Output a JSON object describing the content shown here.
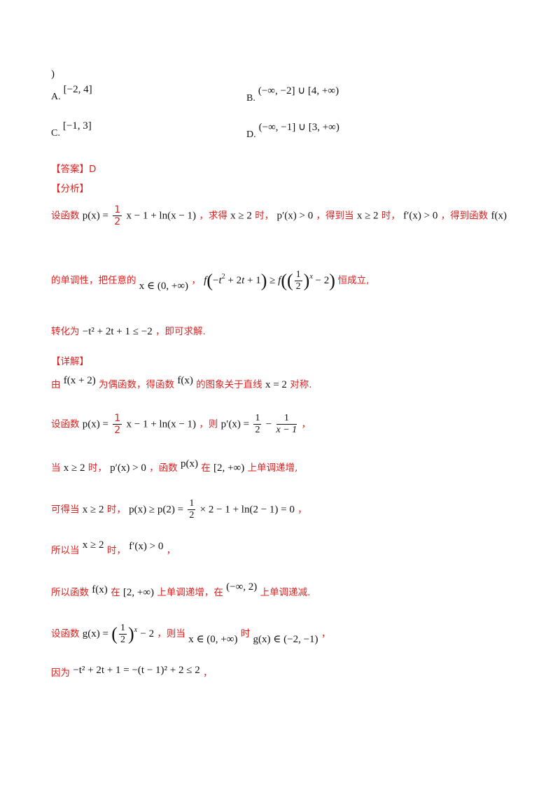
{
  "top_paren": ")",
  "options": {
    "A": {
      "label": "A.",
      "value": "[−2, 4]"
    },
    "B": {
      "label": "B.",
      "value": "(−∞, −2] ∪ [4, +∞)"
    },
    "C": {
      "label": "C.",
      "value": "[−1, 3]"
    },
    "D": {
      "label": "D.",
      "value": "(−∞, −1] ∪ [3, +∞)"
    }
  },
  "answer": {
    "tag": "【答案】",
    "value": "D"
  },
  "analysis": {
    "tag": "【分析】",
    "l1_a": "设函数",
    "l1_m1": "p(x) =",
    "l1_m2": "x − 1 + ln(x − 1)",
    "l1_b": "，求得",
    "l1_m3": "x ≥ 2",
    "l1_c": "时，",
    "l1_m4": "p′(x) > 0",
    "l1_d": "，得到当",
    "l1_m5": "x ≥ 2",
    "l1_e": "时，",
    "l1_m6": "f′(x) > 0",
    "l1_f": "，得到函数",
    "l1_m7": "f(x)",
    "l2_a": "的单调性，把任意的",
    "l2_m1": "x ∈ (0, +∞)",
    "l2_b": "，",
    "l2_c": "恒成立,",
    "l3_a": "转化为",
    "l3_m": "−t² + 2t + 1 ≤ −2",
    "l3_b": "，即可求解."
  },
  "detail": {
    "tag": "【详解】",
    "l1_a": "由",
    "l1_m1": "f(x + 2)",
    "l1_b": "为偶函数，得函数",
    "l1_m2": "f(x)",
    "l1_c": "的图象关于直线",
    "l1_m3": "x = 2",
    "l1_d": "对称.",
    "l2_a": "设函数",
    "l2_m1": "p(x) =",
    "l2_m2": "x − 1 + ln(x − 1)",
    "l2_b": "，则",
    "l2_m3": "p′(x) =",
    "l2_c": "，",
    "l3_a": "当",
    "l3_m1": "x ≥ 2",
    "l3_b": "时，",
    "l3_m2": "p′(x) > 0",
    "l3_c": "，函数",
    "l3_m3": "p(x)",
    "l3_d": "在",
    "l3_m4": "[2, +∞)",
    "l3_e": "上单调递增,",
    "l4_a": "可得当",
    "l4_m1": "x ≥ 2",
    "l4_b": "时，",
    "l4_m2": "p(x) ≥ p(2) =",
    "l4_m3": "× 2 − 1 + ln(2 − 1) = 0",
    "l4_c": "，",
    "l5_a": "所以当",
    "l5_m1": "x ≥ 2",
    "l5_b": "时，",
    "l5_m2": "f′(x) > 0",
    "l5_c": "，",
    "l6_a": "所以函数",
    "l6_m1": "f(x)",
    "l6_b": "在",
    "l6_m2": "[2, +∞)",
    "l6_c": "上单调递增，在",
    "l6_m3": "(−∞, 2)",
    "l6_d": "上单调递减.",
    "l7_a": "设函数",
    "l7_m1": "g(x) =",
    "l7_m2": "− 2",
    "l7_b": "，则当",
    "l7_m3": "x ∈ (0, +∞)",
    "l7_c": "时",
    "l7_m4": "g(x) ∈ (−2, −1)",
    "l7_d": "，",
    "l8_a": "因为",
    "l8_m": "−t² + 2t + 1 = −(t − 1)² + 2 ≤ 2",
    "l8_b": "，"
  }
}
